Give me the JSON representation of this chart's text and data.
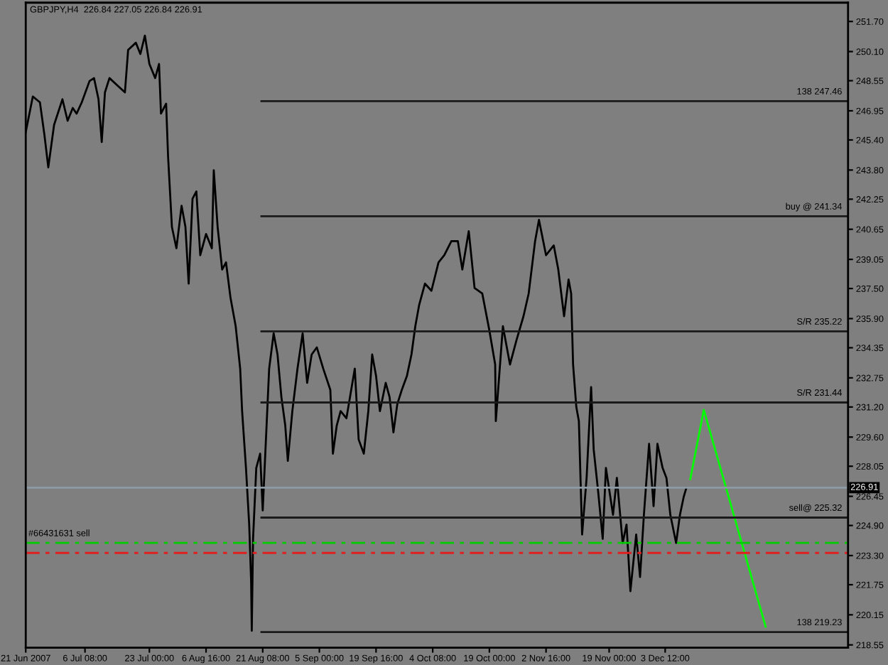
{
  "chart_data": {
    "type": "line",
    "title": "GBPJPY,H4  226.84 227.05 226.84 226.91",
    "xlim": [
      "2007-06-21T00:00",
      "2008-01-19T20:00"
    ],
    "ylim": [
      218.4,
      252.7
    ],
    "xticks": [
      {
        "value": "2007-06-21T00:00",
        "label": "21 Jun 2007"
      },
      {
        "value": "2007-07-06T08:00",
        "label": "6 Jul 08:00"
      },
      {
        "value": "2007-07-23T00:00",
        "label": "23 Jul 00:00"
      },
      {
        "value": "2007-08-06T16:00",
        "label": "6 Aug 16:00"
      },
      {
        "value": "2007-08-21T08:00",
        "label": "21 Aug 08:00"
      },
      {
        "value": "2007-09-05T00:00",
        "label": "5 Sep 00:00"
      },
      {
        "value": "2007-09-19T16:00",
        "label": "19 Sep 16:00"
      },
      {
        "value": "2007-10-04T08:00",
        "label": "4 Oct 08:00"
      },
      {
        "value": "2007-10-19T00:00",
        "label": "19 Oct 00:00"
      },
      {
        "value": "2007-11-02T16:00",
        "label": "2 Nov 16:00"
      },
      {
        "value": "2007-11-19T00:00",
        "label": "19 Nov 00:00"
      },
      {
        "value": "2007-12-03T12:00",
        "label": "3 Dec 12:00"
      }
    ],
    "yticks": [
      {
        "value": 251.7,
        "label": "251.70"
      },
      {
        "value": 250.1,
        "label": "250.10"
      },
      {
        "value": 248.55,
        "label": "248.55"
      },
      {
        "value": 246.95,
        "label": "246.95"
      },
      {
        "value": 245.4,
        "label": "245.40"
      },
      {
        "value": 243.8,
        "label": "243.80"
      },
      {
        "value": 242.25,
        "label": "242.25"
      },
      {
        "value": 240.65,
        "label": "240.65"
      },
      {
        "value": 239.05,
        "label": "239.05"
      },
      {
        "value": 237.5,
        "label": "237.50"
      },
      {
        "value": 235.9,
        "label": "235.90"
      },
      {
        "value": 234.35,
        "label": "234.35"
      },
      {
        "value": 232.75,
        "label": "232.75"
      },
      {
        "value": 231.2,
        "label": "231.20"
      },
      {
        "value": 229.6,
        "label": "229.60"
      },
      {
        "value": 228.05,
        "label": "228.05"
      },
      {
        "value": 226.45,
        "label": "226.45"
      },
      {
        "value": 224.9,
        "label": "224.90"
      },
      {
        "value": 223.3,
        "label": "223.30"
      },
      {
        "value": 221.75,
        "label": "221.75"
      },
      {
        "value": 220.15,
        "label": "220.15"
      },
      {
        "value": 218.55,
        "label": "218.55"
      }
    ],
    "series": [
      {
        "color": "#000000",
        "x": [
          "2007-06-21T00:00",
          "2007-06-22T20:00",
          "2007-06-24T16:00",
          "2007-06-25T20:00",
          "2007-06-26T20:00",
          "2007-06-28T08:00",
          "2007-06-30T12:00",
          "2007-07-01T20:00",
          "2007-07-03T04:00",
          "2007-07-04T04:00",
          "2007-07-05T12:00",
          "2007-07-07T12:00",
          "2007-07-08T16:00",
          "2007-07-09T20:00",
          "2007-07-10T16:00",
          "2007-07-11T12:00",
          "2007-07-12T16:00",
          "2007-07-14T16:00",
          "2007-07-16T16:00",
          "2007-07-17T12:00",
          "2007-07-19T12:00",
          "2007-07-20T16:00",
          "2007-07-21T20:00",
          "2007-07-23T00:00",
          "2007-07-24T12:00",
          "2007-07-25T12:00",
          "2007-07-26T00:00",
          "2007-07-27T08:00",
          "2007-07-27T20:00",
          "2007-07-28T20:00",
          "2007-07-30T00:00",
          "2007-07-31T08:00",
          "2007-08-01T08:00",
          "2007-08-02T04:00",
          "2007-08-03T04:00",
          "2007-08-04T04:00",
          "2007-08-05T04:00",
          "2007-08-06T16:00",
          "2007-08-08T04:00",
          "2007-08-08T16:00",
          "2007-08-09T16:00",
          "2007-08-10T20:00",
          "2007-08-11T20:00",
          "2007-08-13T00:00",
          "2007-08-14T08:00",
          "2007-08-15T12:00",
          "2007-08-16T00:00",
          "2007-08-17T00:00",
          "2007-08-17T20:00",
          "2007-08-18T08:00",
          "2007-08-18T12:00",
          "2007-08-18T20:00",
          "2007-08-19T16:00",
          "2007-08-20T16:00",
          "2007-08-21T08:00",
          "2007-08-22T08:00",
          "2007-08-23T00:00",
          "2007-08-24T04:00",
          "2007-08-25T04:00",
          "2007-08-26T04:00",
          "2007-08-27T04:00",
          "2007-08-27T20:00",
          "2007-08-29T00:00",
          "2007-08-30T08:00",
          "2007-08-31T16:00",
          "2007-09-01T20:00",
          "2007-09-03T00:00",
          "2007-09-04T08:00",
          "2007-09-06T00:00",
          "2007-09-07T20:00",
          "2007-09-08T12:00",
          "2007-09-09T12:00",
          "2007-09-10T12:00",
          "2007-09-12T00:00",
          "2007-09-14T04:00",
          "2007-09-15T04:00",
          "2007-09-16T12:00",
          "2007-09-17T16:00",
          "2007-09-18T16:00",
          "2007-09-19T16:00",
          "2007-09-20T16:00",
          "2007-09-22T04:00",
          "2007-09-23T04:00",
          "2007-09-24T04:00",
          "2007-09-25T04:00",
          "2007-09-26T08:00",
          "2007-09-27T16:00",
          "2007-09-28T20:00",
          "2007-09-29T20:00",
          "2007-09-30T20:00",
          "2007-10-02T08:00",
          "2007-10-04T00:00",
          "2007-10-05T20:00",
          "2007-10-07T08:00",
          "2007-10-09T04:00",
          "2007-10-10T20:00",
          "2007-10-12T00:00",
          "2007-10-13T16:00",
          "2007-10-15T04:00",
          "2007-10-17T04:00",
          "2007-10-19T00:00",
          "2007-10-20T12:00",
          "2007-10-20T16:00",
          "2007-10-22T12:00",
          "2007-10-24T08:00",
          "2007-10-26T00:00",
          "2007-10-27T20:00",
          "2007-10-29T04:00",
          "2007-10-30T20:00",
          "2007-10-31T20:00",
          "2007-11-02T16:00",
          "2007-11-04T16:00",
          "2007-11-05T20:00",
          "2007-11-07T08:00",
          "2007-11-08T12:00",
          "2007-11-09T04:00",
          "2007-11-09T16:00",
          "2007-11-10T12:00",
          "2007-11-11T04:00",
          "2007-11-12T00:00",
          "2007-11-13T04:00",
          "2007-11-14T08:00",
          "2007-11-15T00:00",
          "2007-11-16T04:00",
          "2007-11-17T08:00",
          "2007-11-18T04:00",
          "2007-11-20T00:00",
          "2007-11-21T00:00",
          "2007-11-22T12:00",
          "2007-11-23T12:00",
          "2007-11-24T12:00",
          "2007-11-26T00:00",
          "2007-11-27T00:00",
          "2007-11-28T00:00",
          "2007-11-29T08:00",
          "2007-11-30T12:00",
          "2007-12-01T12:00",
          "2007-12-02T20:00",
          "2007-12-03T20:00",
          "2007-12-04T20:00",
          "2007-12-06T08:00",
          "2007-12-07T08:00",
          "2007-12-08T08:00",
          "2007-12-09T00:00"
        ],
        "values": [
          245.82,
          247.71,
          247.4,
          245.67,
          243.94,
          246.2,
          247.56,
          246.42,
          247.1,
          246.8,
          247.4,
          248.53,
          248.69,
          247.56,
          245.29,
          247.93,
          248.69,
          248.31,
          247.93,
          250.19,
          250.57,
          249.97,
          250.95,
          249.44,
          248.69,
          249.44,
          246.8,
          247.33,
          244.54,
          240.77,
          239.64,
          241.9,
          240.77,
          237.76,
          242.28,
          242.66,
          239.27,
          240.4,
          239.64,
          243.79,
          240.77,
          238.51,
          238.89,
          237.0,
          235.5,
          233.24,
          230.98,
          227.96,
          224.95,
          221.93,
          219.3,
          224.19,
          227.96,
          228.72,
          225.7,
          230.22,
          233.24,
          235.12,
          233.99,
          231.73,
          230.22,
          228.34,
          230.98,
          233.24,
          235.12,
          232.48,
          233.99,
          234.37,
          233.24,
          232.11,
          228.72,
          230.22,
          230.98,
          230.6,
          233.24,
          229.47,
          228.72,
          230.98,
          233.99,
          232.86,
          230.98,
          232.48,
          231.73,
          229.85,
          231.35,
          232.11,
          232.86,
          233.99,
          235.5,
          236.63,
          237.76,
          237.38,
          238.89,
          239.27,
          240.02,
          240.02,
          238.51,
          240.55,
          237.53,
          237.23,
          235.27,
          233.46,
          230.45,
          235.5,
          233.46,
          234.74,
          236.03,
          237.23,
          240.02,
          241.15,
          239.27,
          239.79,
          238.51,
          236.03,
          237.98,
          237.23,
          233.46,
          231.2,
          230.45,
          224.42,
          227.43,
          232.26,
          228.94,
          226.68,
          224.19,
          227.96,
          225.47,
          227.43,
          223.97,
          224.95,
          221.41,
          224.42,
          222.16,
          225.47,
          229.24,
          225.93,
          229.24,
          227.96,
          227.43,
          225.47,
          223.97,
          225.47,
          226.45,
          226.91
        ]
      },
      {
        "color": "#00ff00",
        "x": [
          "2007-12-10T00:00",
          "2007-12-13T12:00",
          "2007-12-29T12:00"
        ],
        "values": [
          227.36,
          231.05,
          219.52
        ]
      },
      {
        "name": "138 247.46",
        "color": "#1a1a1a",
        "x": [
          "2007-08-21T00:00",
          "2008-01-19T20:00"
        ],
        "values": [
          247.46,
          247.46
        ]
      },
      {
        "name": "buy @ 241.34",
        "color": "#1a1a1a",
        "x": [
          "2007-08-21T00:00",
          "2008-01-19T20:00"
        ],
        "values": [
          241.34,
          241.34
        ]
      },
      {
        "name": "S/R 235.22",
        "color": "#1a1a1a",
        "x": [
          "2007-08-21T00:00",
          "2008-01-19T20:00"
        ],
        "values": [
          235.22,
          235.22
        ]
      },
      {
        "name": "S/R 231.44",
        "color": "#1a1a1a",
        "x": [
          "2007-08-21T00:00",
          "2008-01-19T20:00"
        ],
        "values": [
          231.44,
          231.44
        ]
      },
      {
        "name": "sell@ 225.32",
        "color": "#1a1a1a",
        "x": [
          "2007-08-21T00:00",
          "2008-01-19T20:00"
        ],
        "values": [
          225.32,
          225.32
        ]
      },
      {
        "name": "138 219.23",
        "color": "#1a1a1a",
        "x": [
          "2007-08-21T00:00",
          "2008-01-19T20:00"
        ],
        "values": [
          219.23,
          219.23
        ]
      }
    ],
    "ref_lines": [
      {
        "axis": "y",
        "value": 226.91,
        "label": "226.91",
        "color": "#8c9aa6",
        "line_style": "solid"
      },
      {
        "axis": "y",
        "value": 223.97,
        "color": "#00cc00",
        "line_style": "dashdot"
      },
      {
        "axis": "y",
        "value": 223.44,
        "color": "#e02020",
        "line_style": "dashdot"
      }
    ],
    "annotations": [
      {
        "text": "#66431631 sell",
        "x": "2007-06-21T16:00",
        "y": 223.97
      }
    ]
  }
}
